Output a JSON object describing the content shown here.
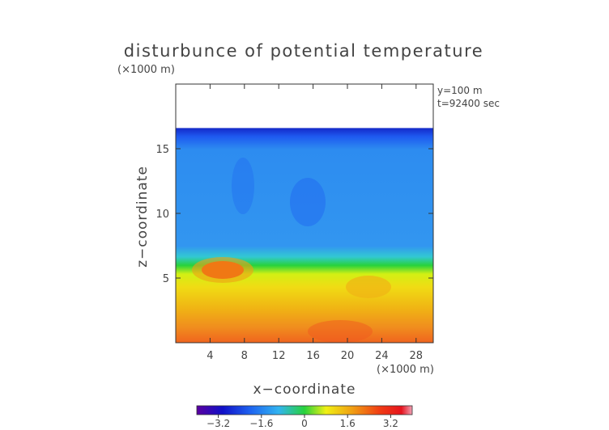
{
  "chart_data": {
    "type": "heatmap",
    "title": "disturbunce of potential temperature",
    "scale_note_top": "(×1000 m)",
    "xlabel": "x−coordinate",
    "ylabel": "z−coordinate",
    "x_unit_note": "(×1000 m)",
    "annotations": [
      "y=100 m",
      "t=92400 sec"
    ],
    "xlim": [
      0,
      30
    ],
    "ylim": [
      0,
      20
    ],
    "x_ticks": [
      4,
      8,
      12,
      16,
      20,
      24,
      28
    ],
    "x_tick_labels": [
      "4",
      "8",
      "12",
      "16",
      "20",
      "24",
      "28"
    ],
    "y_ticks": [
      5,
      10,
      15
    ],
    "y_tick_labels": [
      "5",
      "10",
      "15"
    ],
    "field_top_z": 16.6,
    "colorbar": {
      "range": [
        -4,
        4
      ],
      "ticks": [
        -3.2,
        -1.6,
        0,
        1.6,
        3.2
      ],
      "tick_labels": [
        "−3.2",
        "−1.6",
        "0",
        "1.6",
        "3.2"
      ]
    }
  }
}
